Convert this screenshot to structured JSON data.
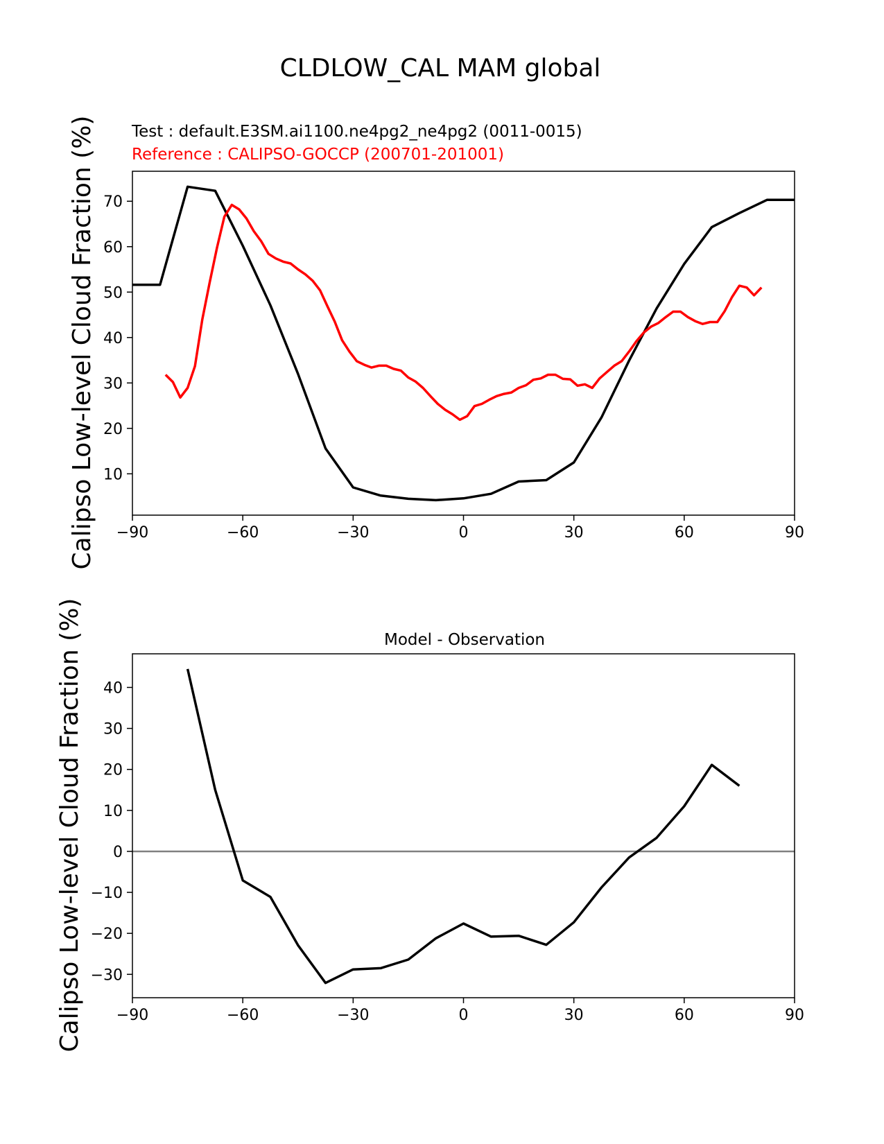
{
  "figure": {
    "title": "CLDLOW_CAL MAM global"
  },
  "chart_data": [
    {
      "type": "line",
      "test_label": "Test : default.E3SM.ai1100.ne4pg2_ne4pg2 (0011-0015)",
      "reference_label": "Reference : CALIPSO-GOCCP (200701-201001)",
      "ylabel": "Calipso Low-level Cloud Fraction (%)",
      "xlim": [
        -90,
        90
      ],
      "ylim": [
        0.9,
        76.6
      ],
      "xticks": [
        -90,
        -60,
        -30,
        0,
        30,
        60,
        90
      ],
      "yticks": [
        10,
        20,
        30,
        40,
        50,
        60,
        70
      ],
      "colors": {
        "test": "#000000",
        "reference": "#ff0000"
      },
      "series": [
        {
          "role": "test",
          "x": [
            -90,
            -82.5,
            -75,
            -67.5,
            -60,
            -52.5,
            -45,
            -37.5,
            -30,
            -22.5,
            -15,
            -7.5,
            0,
            7.5,
            15,
            22.5,
            30,
            37.5,
            45,
            52.5,
            60,
            67.5,
            75,
            82.5,
            90
          ],
          "y": [
            51.6,
            51.6,
            73.2,
            72.3,
            60.2,
            47.1,
            32.0,
            15.6,
            7.0,
            5.2,
            4.5,
            4.2,
            4.6,
            5.6,
            8.3,
            8.6,
            12.5,
            22.4,
            34.9,
            46.4,
            56.2,
            64.3,
            67.4,
            70.3,
            70.3
          ]
        },
        {
          "role": "reference",
          "x": [
            -81,
            -79,
            -77,
            -75,
            -73,
            -71,
            -69,
            -67,
            -65,
            -63,
            -61,
            -59,
            -57,
            -55,
            -53,
            -51,
            -49,
            -47,
            -45,
            -43,
            -41,
            -39,
            -37,
            -35,
            -33,
            -31,
            -29,
            -27,
            -25,
            -23,
            -21,
            -19,
            -17,
            -15,
            -13,
            -11,
            -9,
            -7,
            -5,
            -3,
            -1,
            1,
            3,
            5,
            7,
            9,
            11,
            13,
            15,
            17,
            19,
            21,
            23,
            25,
            27,
            29,
            31,
            33,
            35,
            37,
            39,
            41,
            43,
            45,
            47,
            49,
            51,
            53,
            55,
            57,
            59,
            61,
            63,
            65,
            67,
            69,
            71,
            73,
            75,
            77,
            79,
            81
          ],
          "y": [
            31.8,
            30.2,
            26.8,
            28.9,
            33.7,
            44.0,
            52.1,
            59.8,
            66.6,
            69.2,
            68.2,
            66.2,
            63.4,
            61.2,
            58.4,
            57.4,
            56.7,
            56.3,
            55.0,
            53.9,
            52.5,
            50.4,
            46.9,
            43.5,
            39.4,
            36.9,
            34.8,
            34.0,
            33.4,
            33.8,
            33.8,
            33.1,
            32.7,
            31.2,
            30.3,
            28.9,
            27.1,
            25.4,
            24.1,
            23.1,
            21.9,
            22.7,
            24.9,
            25.4,
            26.3,
            27.1,
            27.6,
            27.9,
            28.9,
            29.5,
            30.7,
            31.0,
            31.8,
            31.8,
            30.9,
            30.8,
            29.4,
            29.7,
            28.9,
            31.0,
            32.4,
            33.8,
            34.8,
            36.9,
            39.2,
            41.1,
            42.4,
            43.2,
            44.5,
            45.7,
            45.7,
            44.5,
            43.6,
            43.0,
            43.4,
            43.4,
            45.8,
            48.9,
            51.4,
            51.0,
            49.3,
            51.0
          ]
        }
      ]
    },
    {
      "type": "line",
      "title": "Model - Observation",
      "ylabel": "Calipso Low-level Cloud Fraction (%)",
      "xlim": [
        -90,
        90
      ],
      "ylim": [
        -35.7,
        48.2
      ],
      "xticks": [
        -90,
        -60,
        -30,
        0,
        30,
        60,
        90
      ],
      "yticks": [
        -30,
        -20,
        -10,
        0,
        10,
        20,
        30,
        40
      ],
      "zero_line_color": "#808080",
      "series": [
        {
          "role": "difference",
          "x": [
            -75,
            -67.5,
            -60,
            -52.5,
            -45,
            -37.5,
            -30,
            -22.5,
            -15,
            -7.5,
            0,
            7.5,
            15,
            22.5,
            30,
            37.5,
            45,
            52.5,
            60,
            67.5,
            75
          ],
          "y": [
            44.5,
            15.0,
            -7.1,
            -11.1,
            -22.9,
            -32.1,
            -28.8,
            -28.5,
            -26.4,
            -21.2,
            -17.6,
            -20.8,
            -20.6,
            -22.8,
            -17.3,
            -8.8,
            -1.5,
            3.3,
            11.0,
            21.1,
            16.0
          ]
        }
      ]
    }
  ]
}
